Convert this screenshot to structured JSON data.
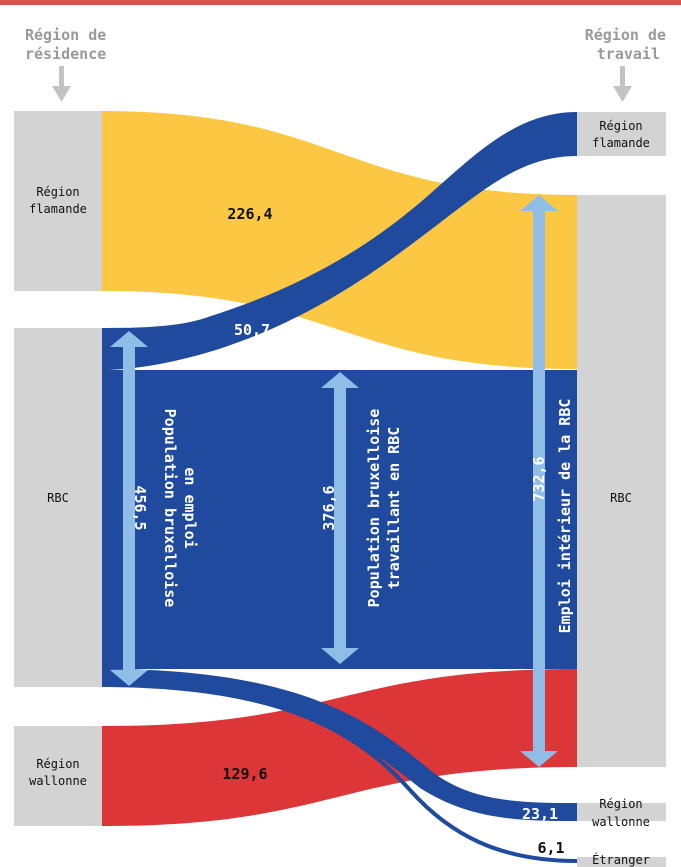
{
  "colors": {
    "top_rule": "#d9534f",
    "node_fill": "#d3d3d3",
    "flow_flamande": "#fcc844",
    "flow_rbc": "#1f4a9e",
    "flow_wallonne": "#dc3639",
    "arrow_fill": "#8fbde8",
    "header_text": "#9a9a9a"
  },
  "headers": {
    "left": [
      "Région de",
      "résidence"
    ],
    "right": [
      "Région de",
      "travail"
    ]
  },
  "nodes": {
    "left": [
      {
        "id": "res-flamande",
        "label": [
          "Région",
          "flamande"
        ]
      },
      {
        "id": "res-rbc",
        "label": [
          "RBC"
        ]
      },
      {
        "id": "res-wallonne",
        "label": [
          "Région",
          "wallonne"
        ]
      }
    ],
    "right": [
      {
        "id": "work-flamande",
        "label": [
          "Région",
          "flamande"
        ]
      },
      {
        "id": "work-rbc",
        "label": [
          "RBC"
        ]
      },
      {
        "id": "work-wallonne",
        "label": [
          "Région",
          "wallonne"
        ]
      },
      {
        "id": "work-etranger",
        "label": [
          "Étranger"
        ]
      }
    ]
  },
  "flows": [
    {
      "id": "flamande-to-rbc",
      "from": "res-flamande",
      "to": "work-rbc",
      "value": "226,4"
    },
    {
      "id": "rbc-to-flamande",
      "from": "res-rbc",
      "to": "work-flamande",
      "value": "50,7"
    },
    {
      "id": "rbc-to-rbc",
      "from": "res-rbc",
      "to": "work-rbc",
      "value": "376,6"
    },
    {
      "id": "rbc-to-wallonne",
      "from": "res-rbc",
      "to": "work-wallonne",
      "value": "23,1"
    },
    {
      "id": "rbc-to-etranger",
      "from": "res-rbc",
      "to": "work-etranger",
      "value": "6,1"
    },
    {
      "id": "wallonne-to-rbc",
      "from": "res-wallonne",
      "to": "work-rbc",
      "value": "129,6"
    }
  ],
  "measures": {
    "population_emploi": {
      "value": "456,5",
      "label": [
        "Population bruxelloise",
        "en emploi"
      ]
    },
    "population_rbc": {
      "value": "376,6",
      "label": [
        "Population bruxelloise",
        "travaillant en RBC"
      ]
    },
    "emploi_interieur": {
      "value": "732,6",
      "label": [
        "Emploi intérieur de la RBC"
      ]
    }
  }
}
